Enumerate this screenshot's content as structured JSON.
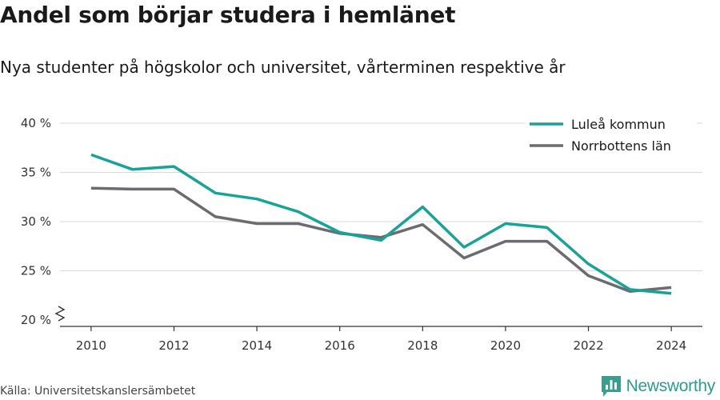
{
  "title": "Andel som börjar studera i hemlänet",
  "subtitle": "Nya studenter på högskolor och universitet, vårterminen respektive år",
  "source": "Källa: Universitetskanslersämbetet",
  "brand": {
    "name": "Newsworthy",
    "icon": "bar-chart-logo-icon",
    "color": "#3a9e8f"
  },
  "chart_data": {
    "type": "line",
    "x": [
      2010,
      2011,
      2012,
      2013,
      2014,
      2015,
      2016,
      2017,
      2018,
      2019,
      2020,
      2021,
      2022,
      2023,
      2024
    ],
    "x_ticks": [
      2010,
      2012,
      2014,
      2016,
      2018,
      2020,
      2022,
      2024
    ],
    "x_tick_labels": [
      "2010",
      "2012",
      "2014",
      "2016",
      "2018",
      "2020",
      "2022",
      "2024"
    ],
    "y_ticks": [
      20,
      25,
      30,
      35,
      40
    ],
    "y_tick_labels": [
      "20 %",
      "25 %",
      "30 %",
      "35 %",
      "40 %"
    ],
    "ylim": [
      20,
      40
    ],
    "xlim": [
      2009.25,
      2024.75
    ],
    "axis_break": true,
    "grid": true,
    "legend": "top-right",
    "series": [
      {
        "name": "Luleå kommun",
        "color": "#17a398",
        "values": [
          36.8,
          35.3,
          35.6,
          32.9,
          32.3,
          31.0,
          28.9,
          28.1,
          31.5,
          27.4,
          29.8,
          29.4,
          25.7,
          23.1,
          22.7
        ]
      },
      {
        "name": "Norrbottens län",
        "color": "#6b6b70",
        "values": [
          33.4,
          33.3,
          33.3,
          30.5,
          29.8,
          29.8,
          28.8,
          28.4,
          29.7,
          26.3,
          28.0,
          28.0,
          24.5,
          22.9,
          23.3
        ]
      }
    ]
  }
}
